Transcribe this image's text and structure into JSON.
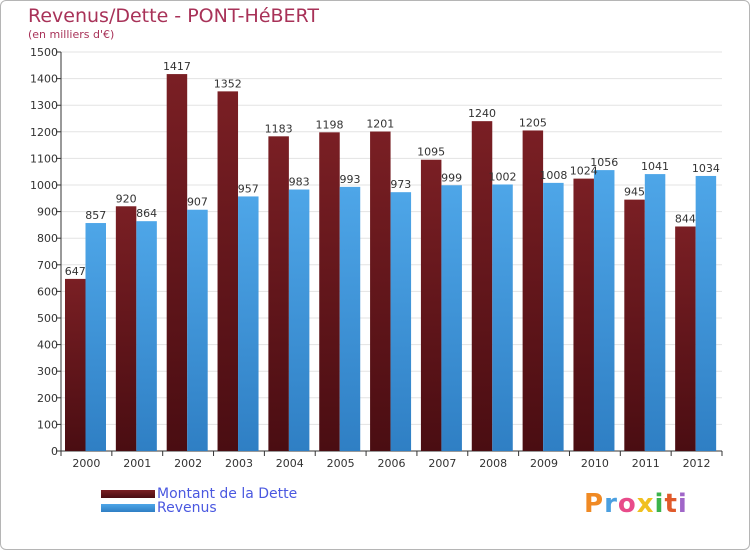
{
  "chart_data": {
    "type": "bar",
    "title": "Revenus/Dette - PONT-HéBERT",
    "subtitle": "(en milliers d'€)",
    "categories": [
      "2000",
      "2001",
      "2002",
      "2003",
      "2004",
      "2005",
      "2006",
      "2007",
      "2008",
      "2009",
      "2010",
      "2011",
      "2012"
    ],
    "series": [
      {
        "name": "Montant de la Dette",
        "color": "#7a1f24",
        "values": [
          647,
          920,
          1417,
          1352,
          1183,
          1198,
          1201,
          1095,
          1240,
          1205,
          1024,
          945,
          844
        ]
      },
      {
        "name": "Revenus",
        "color": "#4ea6e8",
        "values": [
          857,
          864,
          907,
          957,
          983,
          993,
          973,
          999,
          1002,
          1008,
          1056,
          1041,
          1034
        ]
      }
    ],
    "yticks": [
      0,
      100,
      200,
      300,
      400,
      500,
      600,
      700,
      800,
      900,
      1000,
      1100,
      1200,
      1300,
      1400,
      1500
    ],
    "ylim": [
      0,
      1500
    ],
    "grid": true,
    "legend_position": "bottom-left"
  },
  "branding": {
    "logo_text": "Proxiti",
    "logo_colors": [
      "#f08a24",
      "#4a9fe0",
      "#e84b8a",
      "#f0c020",
      "#3cb44b",
      "#e05a2a",
      "#a066c8"
    ]
  },
  "colors": {
    "title": "#a83258",
    "axis_text": "#333333",
    "grid": "#e3e3e3",
    "plot_background": "#ffffff"
  }
}
